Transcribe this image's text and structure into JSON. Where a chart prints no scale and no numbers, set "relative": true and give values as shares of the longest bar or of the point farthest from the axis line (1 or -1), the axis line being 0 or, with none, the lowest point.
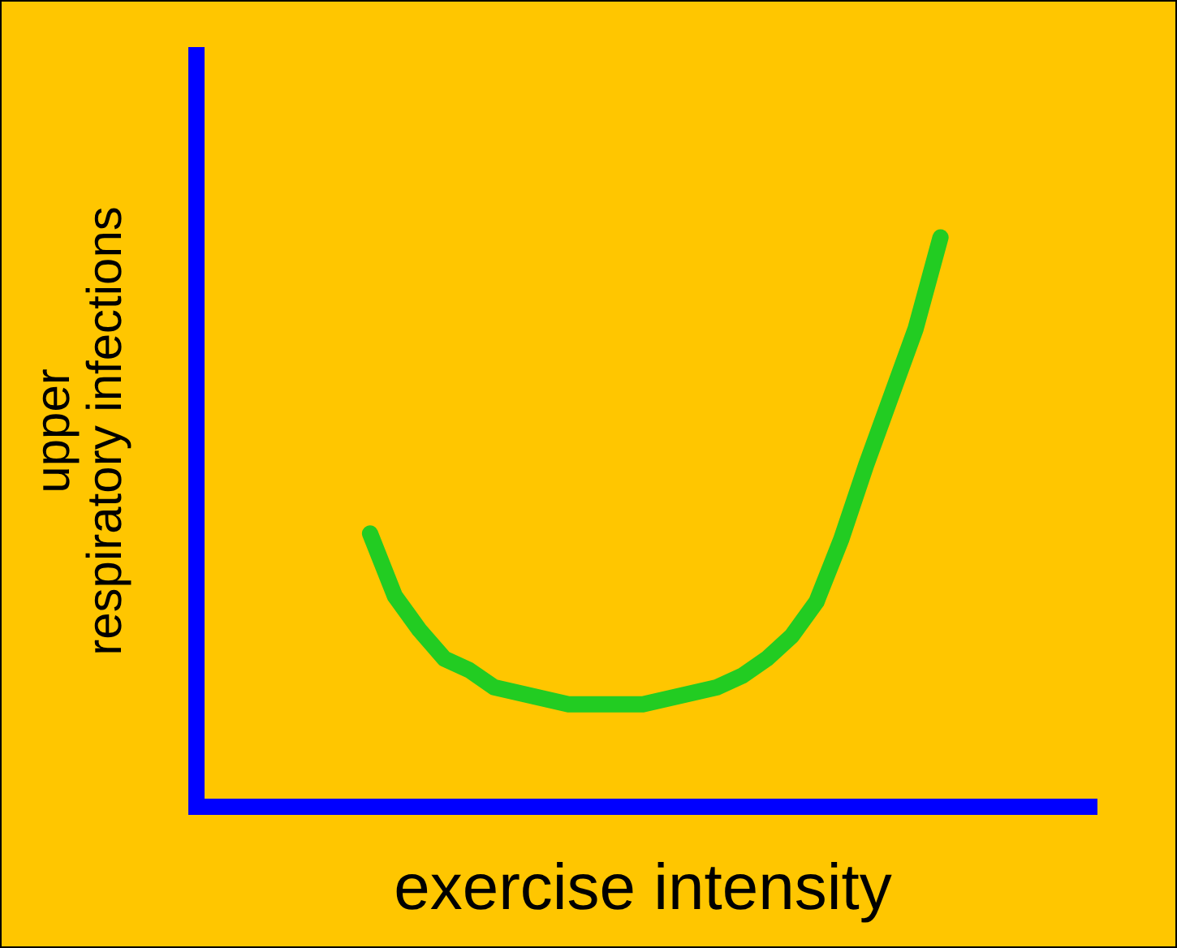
{
  "chart_data": {
    "type": "line",
    "xlabel": "exercise intensity",
    "ylabel": "upper respiratory infections",
    "relative": true,
    "grid": false,
    "marker": "none",
    "line_style": "solid",
    "categories": [
      null,
      null,
      null,
      null,
      null,
      null,
      null,
      null,
      null,
      null,
      null,
      null,
      null,
      null,
      null,
      null,
      null,
      null,
      null,
      null,
      null,
      null,
      null,
      null,
      null,
      null,
      null,
      null,
      null,
      null,
      null,
      null,
      null,
      null,
      null,
      null,
      null
    ],
    "series": [
      {
        "color": "#22cc22",
        "values": [
          null,
          null,
          null,
          null,
          null,
          null,
          null,
          0.48,
          0.37,
          0.31,
          0.26,
          0.24,
          0.21,
          0.2,
          0.19,
          0.18,
          0.18,
          0.18,
          0.18,
          0.19,
          0.2,
          0.21,
          0.23,
          0.26,
          0.3,
          0.36,
          0.47,
          0.6,
          0.72,
          0.84,
          1,
          null,
          null,
          null,
          null,
          null,
          null
        ]
      }
    ]
  }
}
